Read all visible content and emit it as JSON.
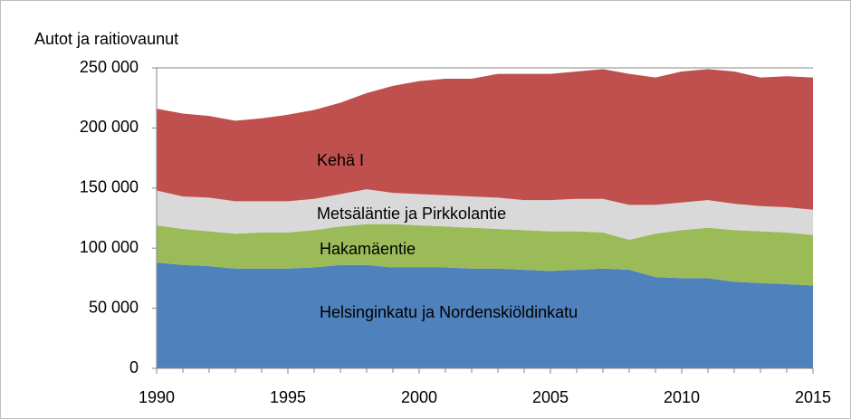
{
  "chart_data": {
    "type": "stacked_area",
    "y_label": "Autot ja raitiovaunut",
    "x": [
      1990,
      1991,
      1992,
      1993,
      1994,
      1995,
      1996,
      1997,
      1998,
      1999,
      2000,
      2001,
      2002,
      2003,
      2004,
      2005,
      2006,
      2007,
      2008,
      2009,
      2010,
      2011,
      2012,
      2013,
      2014,
      2015
    ],
    "xlim": [
      1990,
      2015
    ],
    "xticks": [
      1990,
      1995,
      2000,
      2005,
      2010,
      2015
    ],
    "ylim": [
      0,
      250000
    ],
    "yticks": [
      0,
      {
        "value": 50000,
        "label": "50 000"
      },
      {
        "value": 100000,
        "label": "100 000"
      },
      {
        "value": 150000,
        "label": "150 000"
      },
      {
        "value": 200000,
        "label": "200 000"
      },
      {
        "value": 250000,
        "label": "250 000"
      }
    ],
    "grid": true,
    "series": [
      {
        "name": "Helsinginkatu ja Nordenskiöldinkatu",
        "color": "#4f81bd",
        "values": [
          88000,
          86000,
          85000,
          83000,
          83000,
          83000,
          84000,
          86000,
          86000,
          84000,
          84000,
          84000,
          83000,
          83000,
          82000,
          81000,
          82000,
          83000,
          82000,
          76000,
          75000,
          75000,
          72000,
          71000,
          70000,
          69000
        ]
      },
      {
        "name": "Hakamäentie",
        "color": "#9bbb59",
        "values": [
          31000,
          30000,
          29000,
          29000,
          30000,
          30000,
          31000,
          32000,
          34000,
          36000,
          35000,
          34000,
          34000,
          33000,
          33000,
          33000,
          32000,
          30000,
          25000,
          36000,
          40000,
          42000,
          43000,
          43000,
          43000,
          42000
        ]
      },
      {
        "name": "Metsäläntie ja Pirkkolantie",
        "color": "#d9d9d9",
        "values": [
          29000,
          27000,
          28000,
          27000,
          26000,
          26000,
          26000,
          27000,
          29000,
          26000,
          26000,
          26000,
          26000,
          26000,
          25000,
          26000,
          27000,
          28000,
          29000,
          24000,
          23000,
          23000,
          22000,
          21000,
          21000,
          21000
        ]
      },
      {
        "name": "Kehä I",
        "color": "#c0504d",
        "values": [
          68000,
          69000,
          68000,
          67000,
          69000,
          72000,
          74000,
          76000,
          80000,
          89000,
          94000,
          97000,
          98000,
          103000,
          105000,
          105000,
          106000,
          108000,
          109000,
          106000,
          109000,
          109000,
          110000,
          107000,
          109000,
          110000
        ]
      }
    ]
  }
}
